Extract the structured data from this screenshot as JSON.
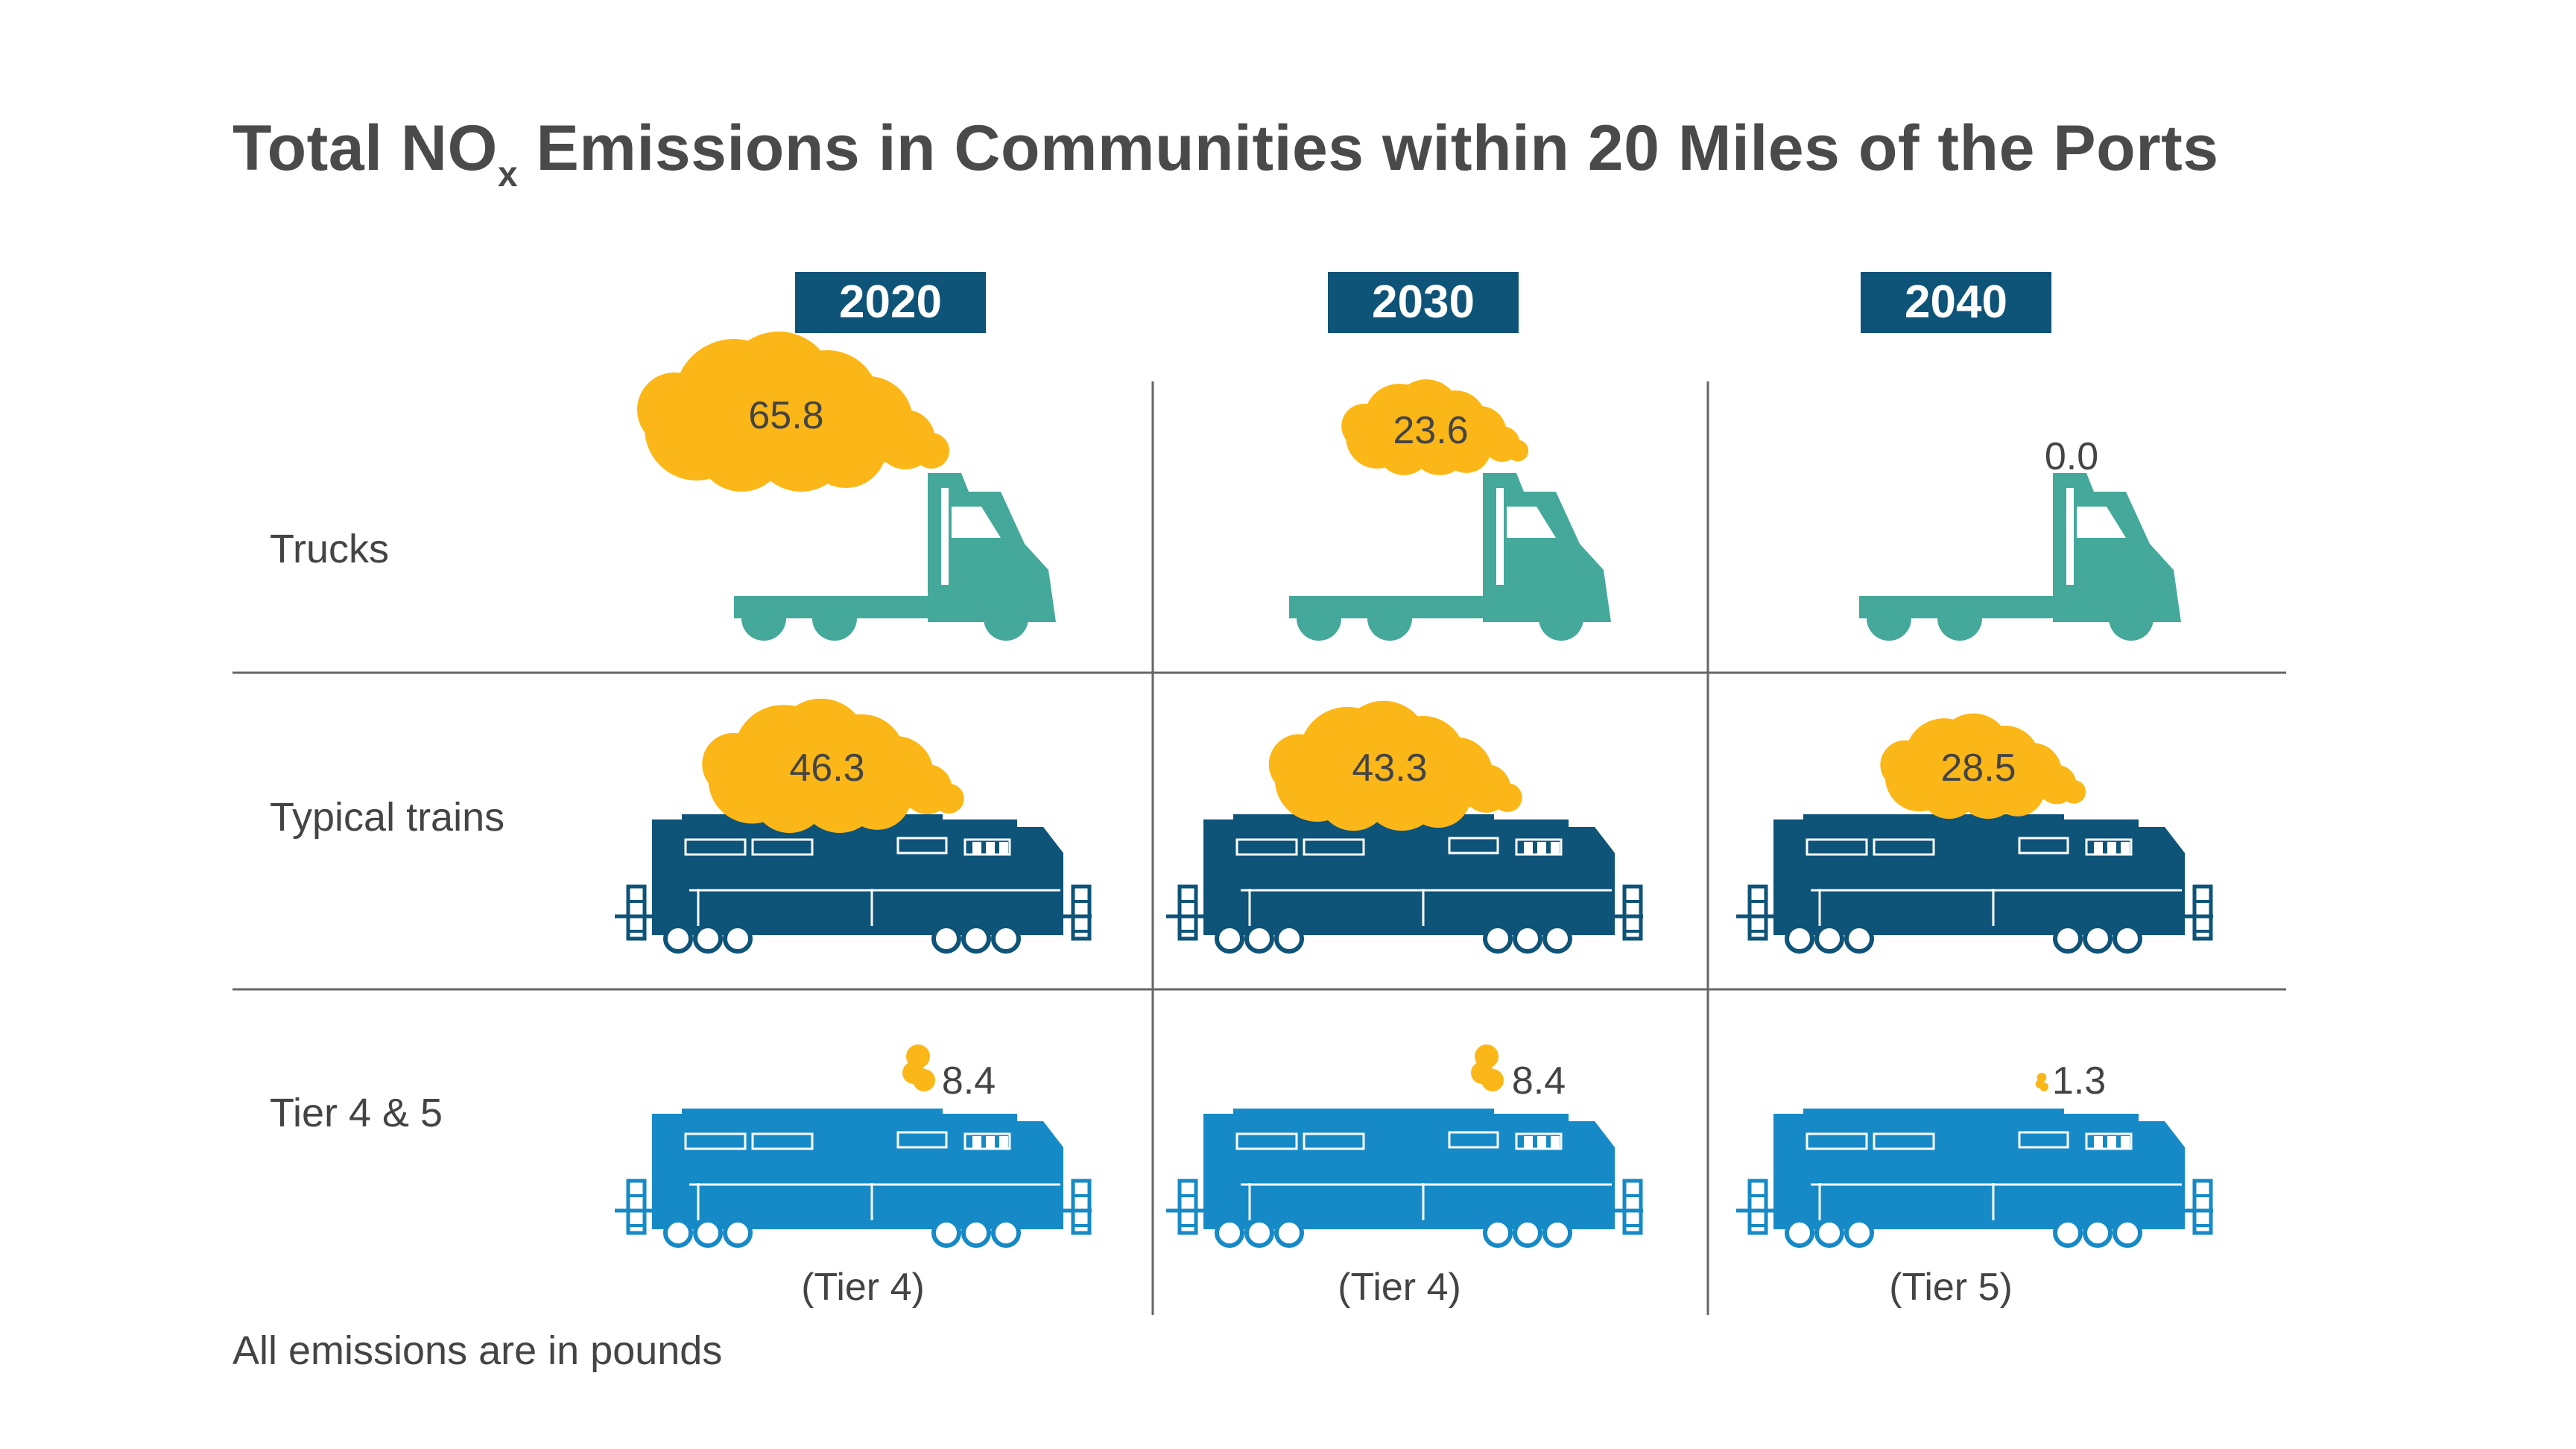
{
  "title": {
    "before_sub": "Total NO",
    "sub": "x",
    "after_sub": " Emissions in Communities within 20 Miles of the Ports"
  },
  "footnote": "All emissions are in pounds",
  "colors": {
    "header_bg": "#0e5378",
    "header_text": "#ffffff",
    "cloud": "#fbb718",
    "truck": "#44a89a",
    "typical_train": "#0e5378",
    "tier_train": "#168ac6",
    "grid": "#666666",
    "text": "#444444"
  },
  "chart_data": {
    "type": "table",
    "unit": "pounds",
    "columns": [
      "2020",
      "2030",
      "2040"
    ],
    "rows": [
      {
        "label": "Trucks",
        "icon": "truck-icon",
        "values": [
          65.8,
          23.6,
          0.0
        ],
        "display": [
          "65.8",
          "23.6",
          "0.0"
        ]
      },
      {
        "label": "Typical trains",
        "icon": "locomotive-icon",
        "values": [
          46.3,
          43.3,
          28.5
        ],
        "display": [
          "46.3",
          "43.3",
          "28.5"
        ]
      },
      {
        "label": "Tier 4 & 5",
        "icon": "locomotive-icon",
        "values": [
          8.4,
          8.4,
          1.3
        ],
        "display": [
          "8.4",
          "8.4",
          "1.3"
        ],
        "notes": [
          "(Tier 4)",
          "(Tier 4)",
          "(Tier 5)"
        ]
      }
    ],
    "max_value": 65.8
  }
}
